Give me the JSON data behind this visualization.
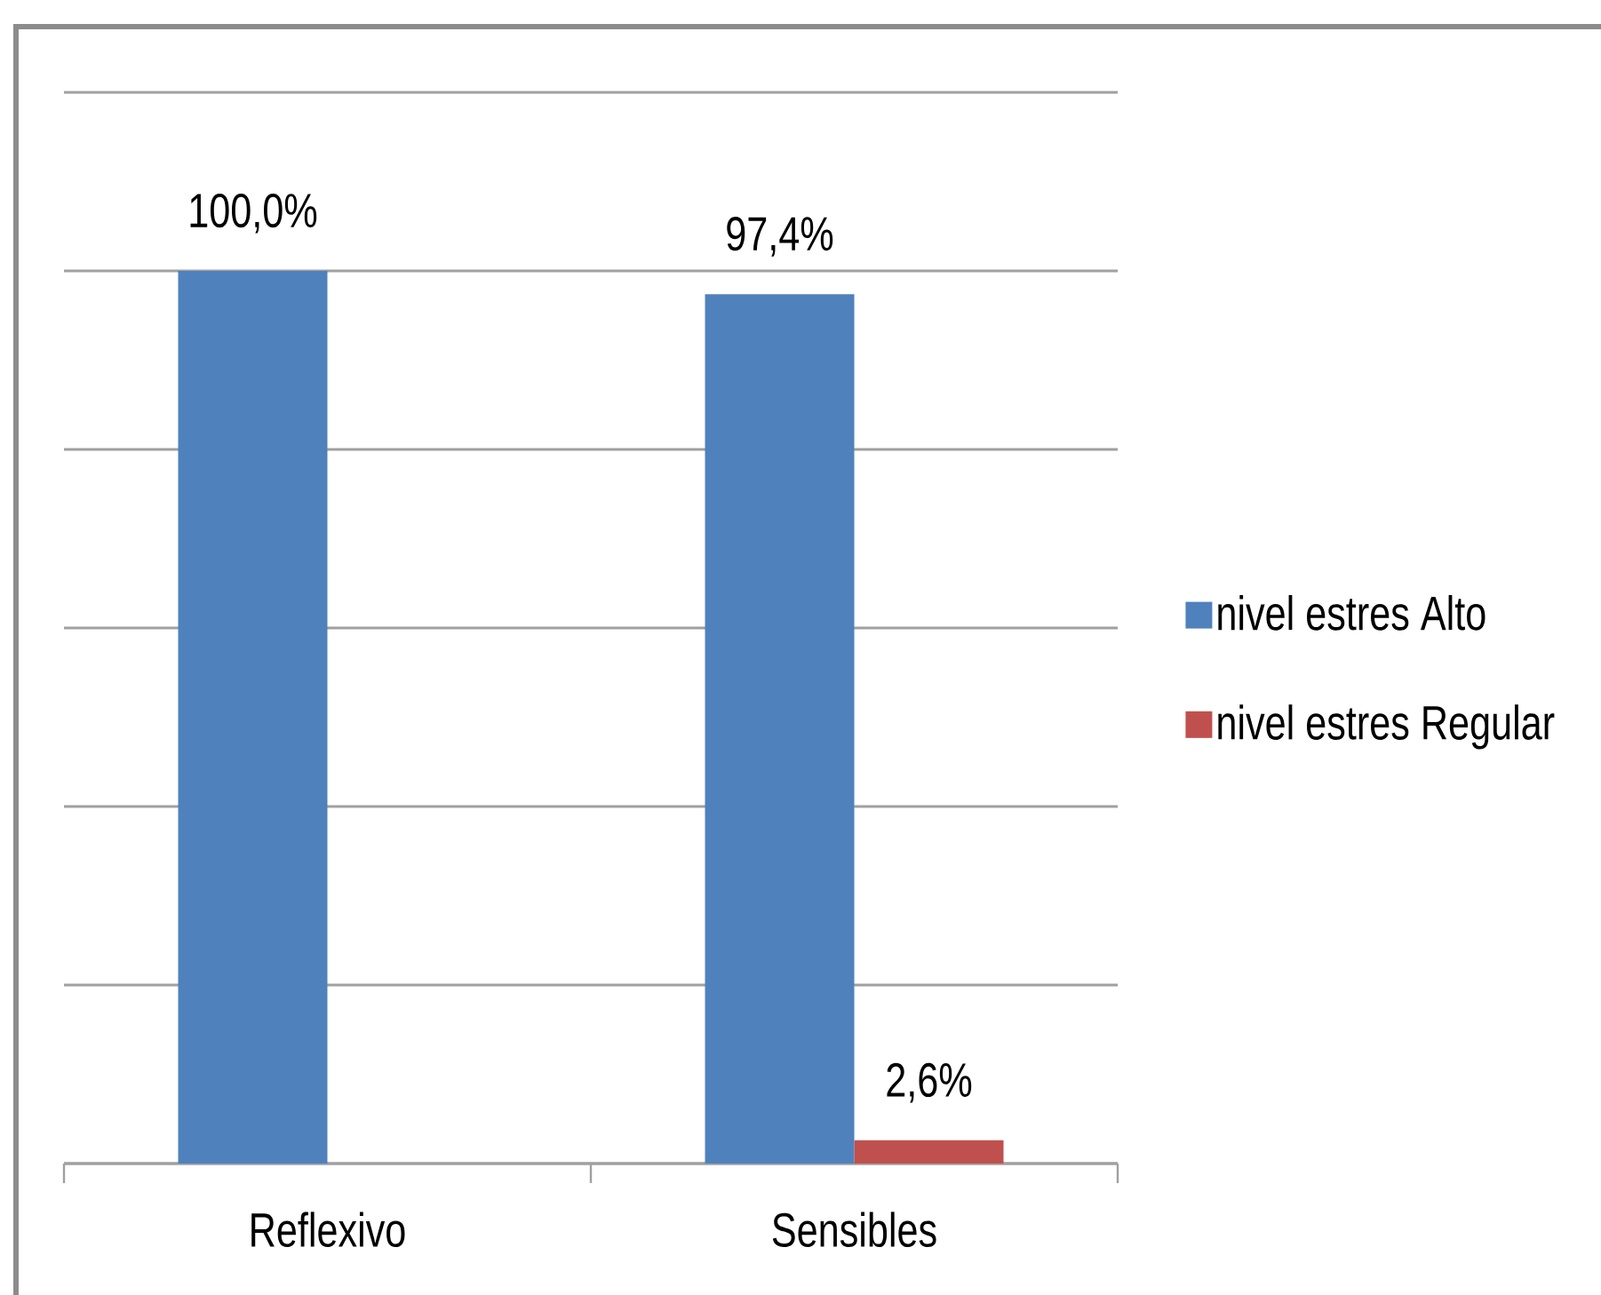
{
  "chart_data": {
    "type": "bar",
    "categories": [
      "Reflexivo",
      "Sensibles"
    ],
    "series": [
      {
        "name": "nivel estres Alto",
        "color": "#4f81bd",
        "values": [
          100.0,
          97.4
        ],
        "value_labels": [
          "100,0%",
          "97,4%"
        ]
      },
      {
        "name": "nivel estres Regular",
        "color": "#c0504d",
        "values": [
          null,
          2.6
        ],
        "value_labels": [
          null,
          "2,6%"
        ]
      }
    ],
    "ylim": [
      0,
      120
    ],
    "yticks": [
      {
        "value": 0,
        "label": null
      },
      {
        "value": 20,
        "label": null
      },
      {
        "value": 40,
        "label": null
      },
      {
        "value": 60,
        "label": null
      },
      {
        "value": 80,
        "label": null
      },
      {
        "value": 100,
        "label": null
      },
      {
        "value": 120,
        "label": null
      }
    ],
    "grid": "y",
    "legend": "right",
    "tick_labels": "x"
  }
}
